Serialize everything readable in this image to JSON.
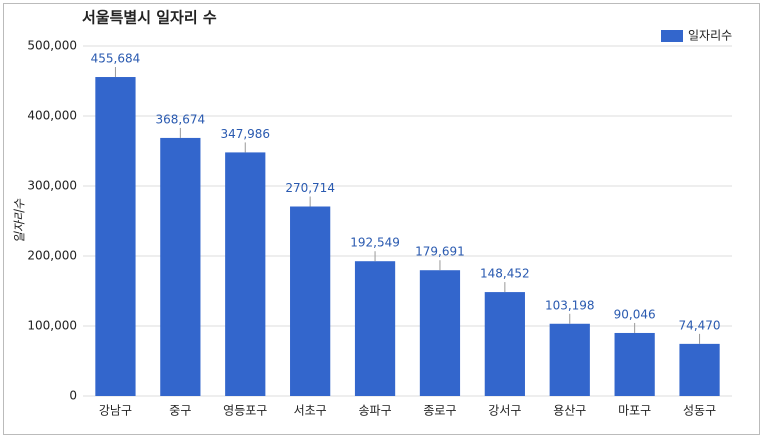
{
  "chart_data": {
    "type": "bar",
    "title": "서울특별시 일자리 수",
    "y_label": "일자리수",
    "categories": [
      "강남구",
      "중구",
      "영등포구",
      "서초구",
      "송파구",
      "종로구",
      "강서구",
      "용산구",
      "마포구",
      "성동구"
    ],
    "series": [
      {
        "name": "일자리수",
        "color": "#3366cc",
        "values": [
          455684,
          368674,
          347986,
          270714,
          192549,
          179691,
          148452,
          103198,
          90046,
          74470
        ],
        "value_labels": [
          "455,684",
          "368,674",
          "347,986",
          "270,714",
          "192,549",
          "179,691",
          "148,452",
          "103,198",
          "90,046",
          "74,470"
        ]
      }
    ],
    "ylim": [
      0,
      500000
    ],
    "yticks": [
      0,
      {
        "value": 100000,
        "label": "100,000"
      },
      {
        "value": 200000,
        "label": "200,000"
      },
      {
        "value": 300000,
        "label": "300,000"
      },
      {
        "value": 400000,
        "label": "400,000"
      },
      {
        "value": 500000,
        "label": "500,000"
      }
    ],
    "grid": true,
    "legend": "top-right"
  }
}
